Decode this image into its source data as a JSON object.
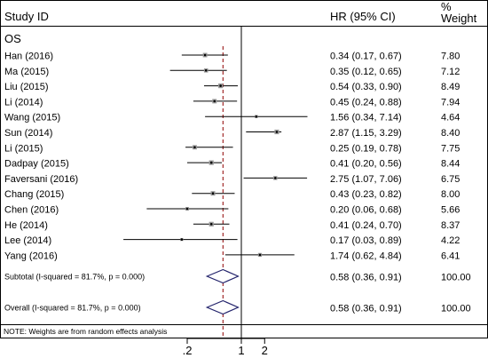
{
  "header": {
    "study_label": "Study ID",
    "hr_label": "HR (95% CI)",
    "weight_label_line1": "%",
    "weight_label_line2": "Weight"
  },
  "group_label": "OS",
  "footnote": "NOTE: Weights are from random effects analysis",
  "chart_data": {
    "type": "forest",
    "scale": "log",
    "x_ticks": [
      {
        "value": 0.2,
        "label": ".2"
      },
      {
        "value": 1,
        "label": "1"
      },
      {
        "value": 2,
        "label": "2"
      }
    ],
    "null_line": 1,
    "overall_line": 0.58,
    "studies": [
      {
        "study": "Han (2016)",
        "hr": 0.34,
        "lo": 0.17,
        "hi": 0.67,
        "ci_text": "0.34 (0.17, 0.67)",
        "weight": "7.80"
      },
      {
        "study": "Ma (2015)",
        "hr": 0.35,
        "lo": 0.12,
        "hi": 0.65,
        "ci_text": "0.35 (0.12, 0.65)",
        "weight": "7.12"
      },
      {
        "study": "Liu (2015)",
        "hr": 0.54,
        "lo": 0.33,
        "hi": 0.9,
        "ci_text": "0.54 (0.33, 0.90)",
        "weight": "8.49"
      },
      {
        "study": "Li (2014)",
        "hr": 0.45,
        "lo": 0.24,
        "hi": 0.88,
        "ci_text": "0.45 (0.24, 0.88)",
        "weight": "7.94"
      },
      {
        "study": "Wang (2015)",
        "hr": 1.56,
        "lo": 0.34,
        "hi": 7.14,
        "ci_text": "1.56 (0.34, 7.14)",
        "weight": "4.64"
      },
      {
        "study": "Sun (2014)",
        "hr": 2.87,
        "lo": 1.15,
        "hi": 3.29,
        "ci_text": "2.87 (1.15, 3.29)",
        "weight": "8.40"
      },
      {
        "study": "Li (2015)",
        "hr": 0.25,
        "lo": 0.19,
        "hi": 0.78,
        "ci_text": "0.25 (0.19, 0.78)",
        "weight": "7.75"
      },
      {
        "study": "Dadpay (2015)",
        "hr": 0.41,
        "lo": 0.2,
        "hi": 0.56,
        "ci_text": "0.41 (0.20, 0.56)",
        "weight": "8.44"
      },
      {
        "study": "Faversani (2016)",
        "hr": 2.75,
        "lo": 1.07,
        "hi": 7.06,
        "ci_text": "2.75 (1.07, 7.06)",
        "weight": "6.75"
      },
      {
        "study": "Chang (2015)",
        "hr": 0.43,
        "lo": 0.23,
        "hi": 0.82,
        "ci_text": "0.43 (0.23, 0.82)",
        "weight": "8.00"
      },
      {
        "study": "Chen (2016)",
        "hr": 0.2,
        "lo": 0.06,
        "hi": 0.68,
        "ci_text": "0.20 (0.06, 0.68)",
        "weight": "5.66"
      },
      {
        "study": "He (2014)",
        "hr": 0.41,
        "lo": 0.24,
        "hi": 0.7,
        "ci_text": "0.41 (0.24, 0.70)",
        "weight": "8.37"
      },
      {
        "study": "Lee (2014)",
        "hr": 0.17,
        "lo": 0.03,
        "hi": 0.89,
        "ci_text": "0.17 (0.03, 0.89)",
        "weight": "4.22"
      },
      {
        "study": "Yang (2016)",
        "hr": 1.74,
        "lo": 0.62,
        "hi": 4.84,
        "ci_text": "1.74 (0.62, 4.84)",
        "weight": "6.41"
      }
    ],
    "summaries": [
      {
        "label": "Subtotal  (I-squared = 81.7%, p = 0.000)",
        "hr": 0.58,
        "lo": 0.36,
        "hi": 0.91,
        "ci_text": "0.58 (0.36, 0.91)",
        "weight": "100.00"
      },
      {
        "label": "Overall  (I-squared = 81.7%, p = 0.000)",
        "hr": 0.58,
        "lo": 0.36,
        "hi": 0.91,
        "ci_text": "0.58 (0.36, 0.91)",
        "weight": "100.00"
      }
    ]
  }
}
